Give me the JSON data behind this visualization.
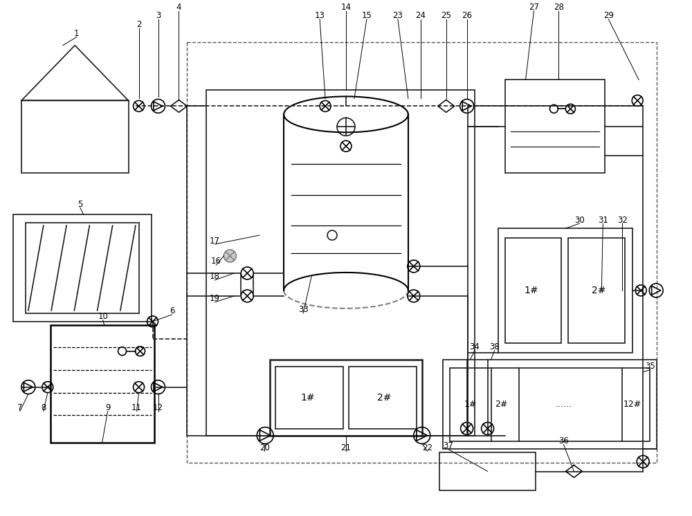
{
  "bg_color": "#ffffff",
  "lc": "#1a1a1a",
  "gc": "#888888",
  "fig_w": 10.0,
  "fig_h": 7.46,
  "lw": 1.2,
  "lw_thick": 1.8
}
